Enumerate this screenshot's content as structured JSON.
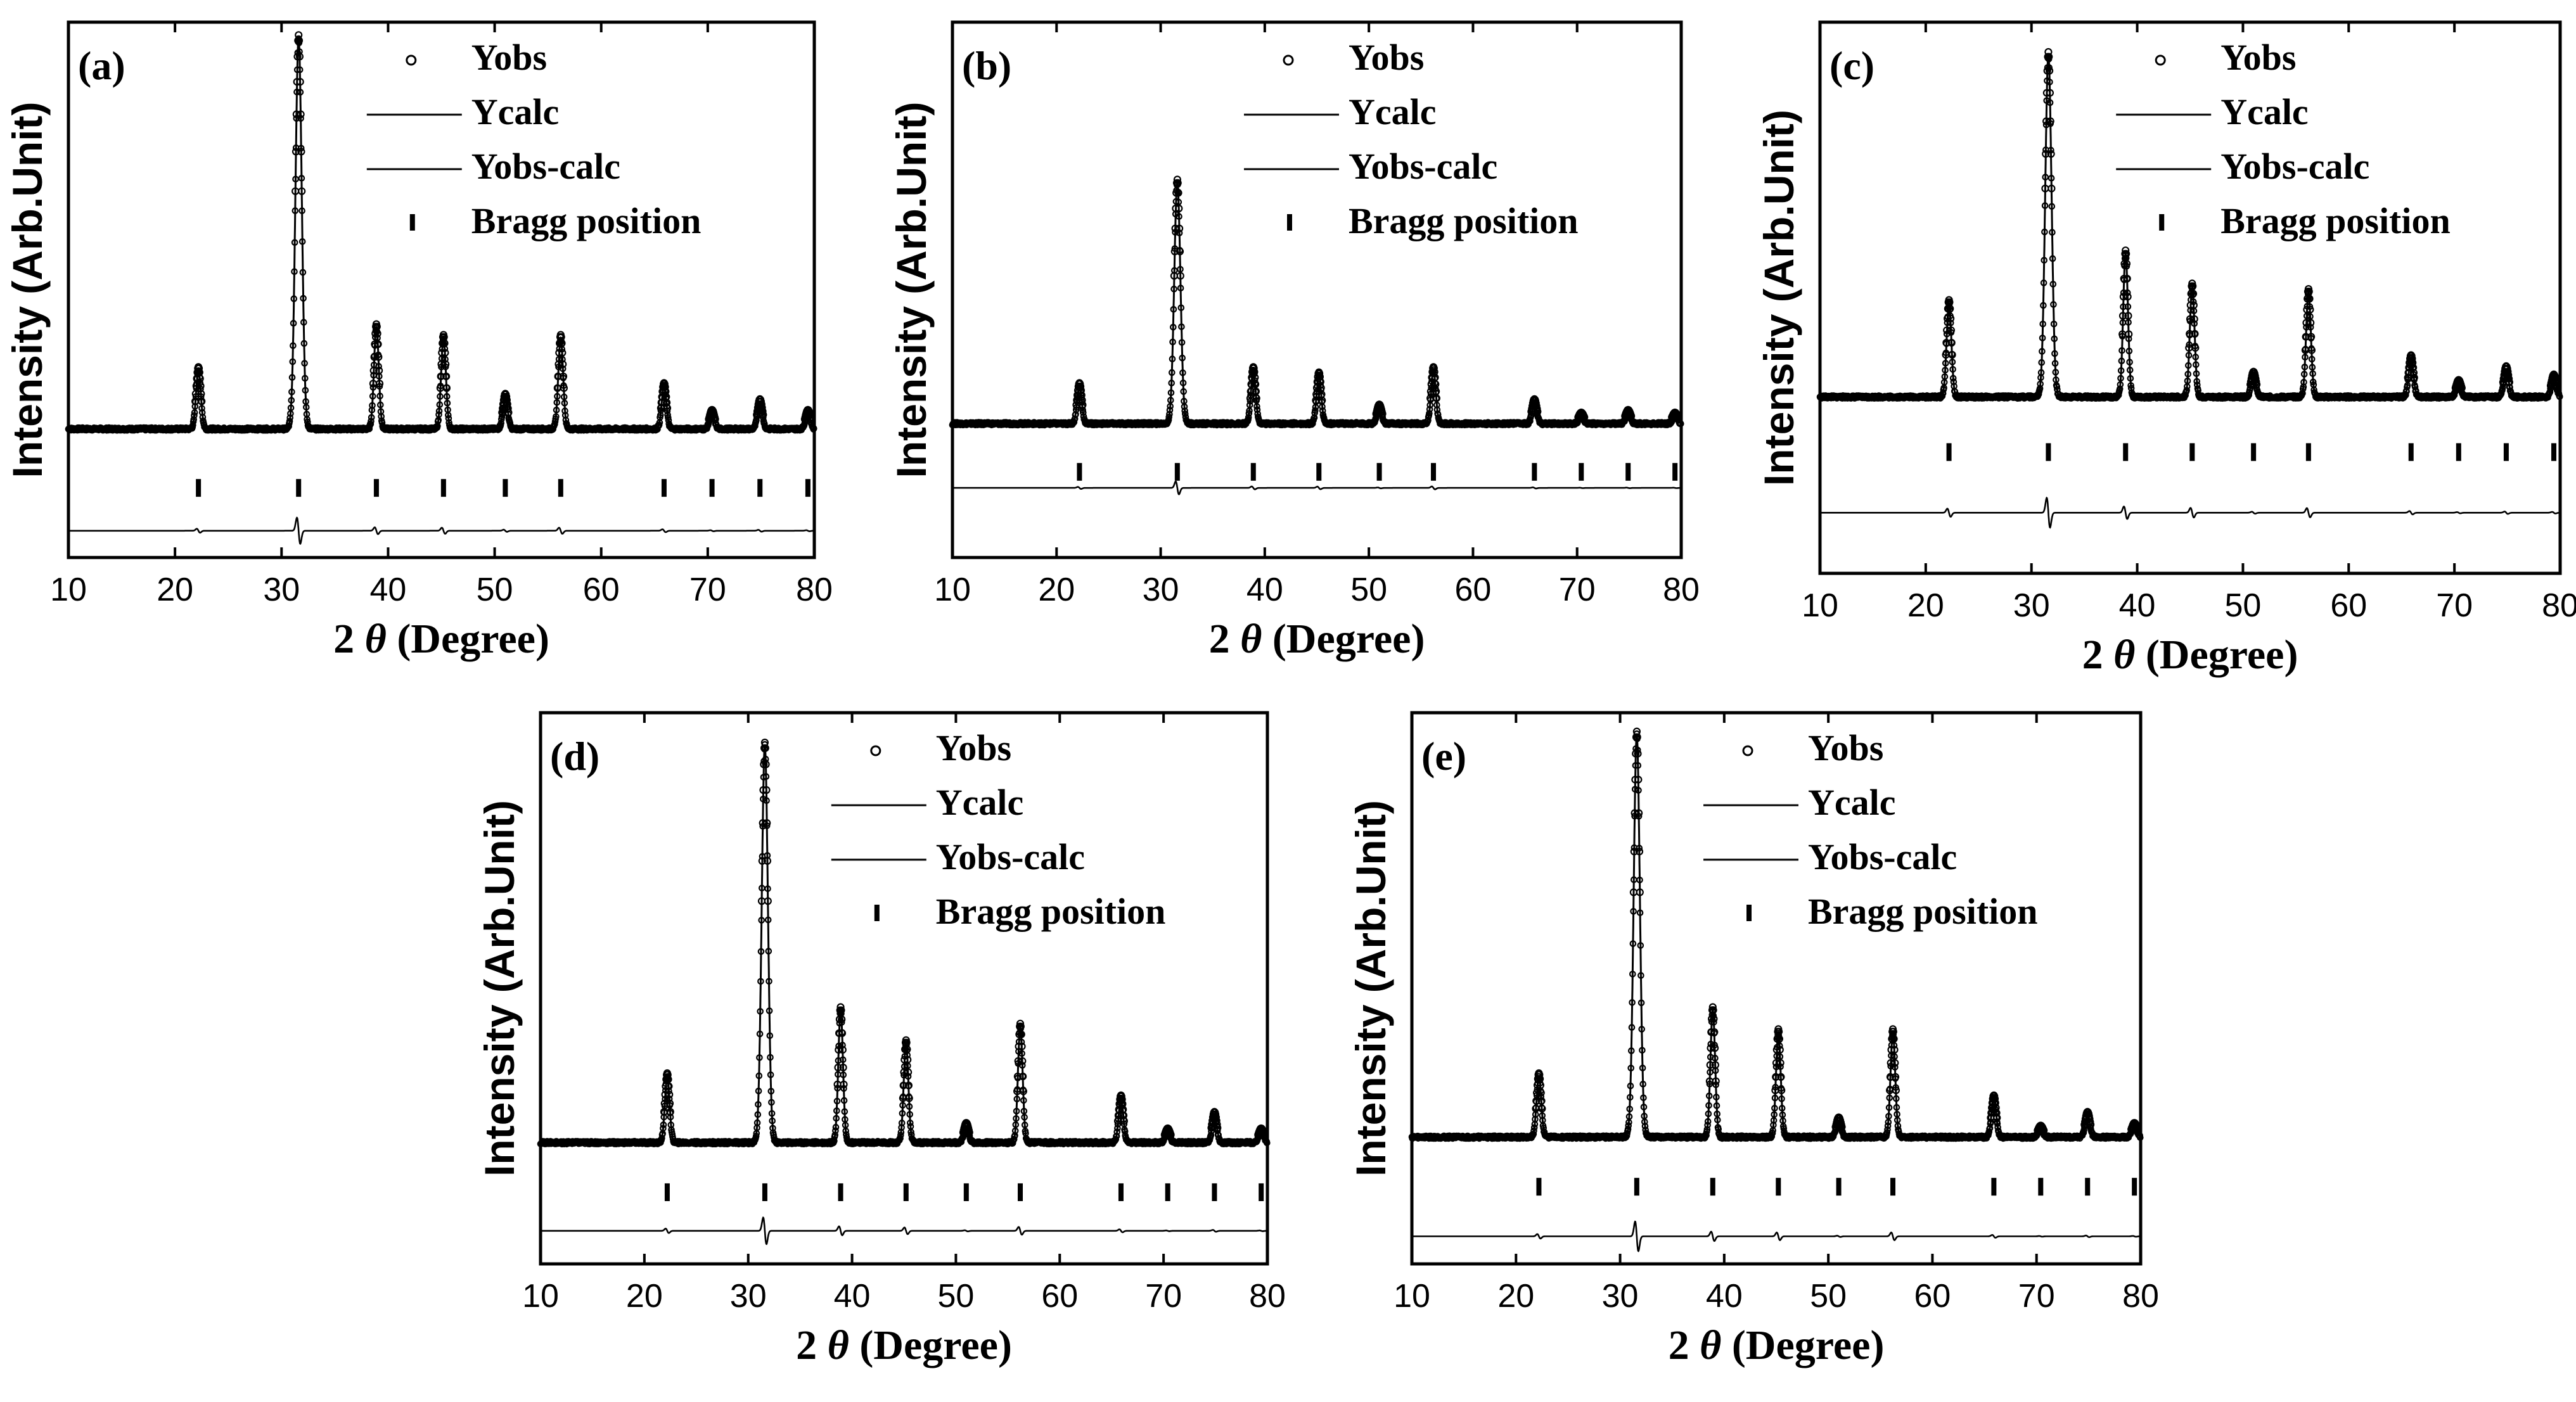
{
  "figure": {
    "xlabel_prefix": "2 ",
    "xlabel_symbol": "θ",
    "xlabel_suffix": " (Degree)",
    "ylabel": "Intensity (Arb.Unit)",
    "legend": {
      "obs": "Yobs",
      "calc": "Ycalc",
      "diff": "Yobs-calc",
      "bragg": "Bragg position"
    }
  },
  "chart_data": [
    {
      "panel": "(a)",
      "type": "line",
      "title": "",
      "xlabel": "2 θ (Degree)",
      "ylabel": "Intensity (Arb.Unit)",
      "xlim": [
        10,
        80
      ],
      "ylim": [
        0,
        100
      ],
      "xticks": [
        10,
        20,
        30,
        40,
        50,
        60,
        70,
        80
      ],
      "baseline": 24,
      "bragg_level": 13,
      "diff_level": 5,
      "diff_scale": 1,
      "peaks": [
        [
          22.2,
          11
        ],
        [
          31.6,
          73
        ],
        [
          38.9,
          19
        ],
        [
          45.2,
          17
        ],
        [
          51.0,
          6
        ],
        [
          56.2,
          17
        ],
        [
          65.9,
          8
        ],
        [
          70.4,
          3
        ],
        [
          74.9,
          5
        ],
        [
          79.4,
          3
        ]
      ],
      "bragg_positions": [
        22.2,
        31.6,
        38.9,
        45.2,
        51.0,
        56.2,
        65.9,
        70.4,
        74.9,
        79.4
      ],
      "series": [
        {
          "name": "Yobs",
          "role": "obs"
        },
        {
          "name": "Ycalc",
          "role": "calc"
        },
        {
          "name": "Yobs-calc",
          "role": "diff"
        },
        {
          "name": "Bragg position",
          "role": "bragg"
        }
      ]
    },
    {
      "panel": "(b)",
      "type": "line",
      "title": "",
      "xlabel": "2 θ (Degree)",
      "ylabel": "Intensity (Arb.Unit)",
      "xlim": [
        10,
        80
      ],
      "ylim": [
        0,
        100
      ],
      "xticks": [
        10,
        20,
        30,
        40,
        50,
        60,
        70,
        80
      ],
      "baseline": 25,
      "bragg_level": 16,
      "diff_level": 13,
      "diff_scale": 0.8,
      "peaks": [
        [
          22.2,
          7
        ],
        [
          31.6,
          45
        ],
        [
          38.9,
          10
        ],
        [
          45.2,
          9
        ],
        [
          51.0,
          3
        ],
        [
          56.2,
          10
        ],
        [
          65.9,
          4
        ],
        [
          70.4,
          1.5
        ],
        [
          74.9,
          2
        ],
        [
          79.4,
          1.5
        ]
      ],
      "bragg_positions": [
        22.2,
        31.6,
        38.9,
        45.2,
        51.0,
        56.2,
        65.9,
        70.4,
        74.9,
        79.4
      ],
      "series": [
        {
          "name": "Yobs",
          "role": "obs"
        },
        {
          "name": "Ycalc",
          "role": "calc"
        },
        {
          "name": "Yobs-calc",
          "role": "diff"
        },
        {
          "name": "Bragg position",
          "role": "bragg"
        }
      ]
    },
    {
      "panel": "(c)",
      "type": "line",
      "title": "",
      "xlabel": "2 θ (Degree)",
      "ylabel": "Intensity (Arb.Unit)",
      "xlim": [
        10,
        80
      ],
      "ylim": [
        0,
        100
      ],
      "xticks": [
        10,
        20,
        30,
        40,
        50,
        60,
        70,
        80
      ],
      "baseline": 32,
      "bragg_level": 22,
      "diff_level": 11,
      "diff_scale": 1.3,
      "peaks": [
        [
          22.2,
          17
        ],
        [
          31.6,
          62
        ],
        [
          38.9,
          26
        ],
        [
          45.2,
          20
        ],
        [
          51.0,
          4
        ],
        [
          56.2,
          19
        ],
        [
          65.9,
          7
        ],
        [
          70.4,
          2.5
        ],
        [
          74.9,
          5
        ],
        [
          79.4,
          3.5
        ]
      ],
      "bragg_positions": [
        22.2,
        31.6,
        38.9,
        45.2,
        51.0,
        56.2,
        65.9,
        70.4,
        74.9,
        79.4
      ],
      "series": [
        {
          "name": "Yobs",
          "role": "obs"
        },
        {
          "name": "Ycalc",
          "role": "calc"
        },
        {
          "name": "Yobs-calc",
          "role": "diff"
        },
        {
          "name": "Bragg position",
          "role": "bragg"
        }
      ]
    },
    {
      "panel": "(d)",
      "type": "line",
      "title": "",
      "xlabel": "2 θ (Degree)",
      "ylabel": "Intensity (Arb.Unit)",
      "xlim": [
        10,
        80
      ],
      "ylim": [
        0,
        100
      ],
      "xticks": [
        10,
        20,
        30,
        40,
        50,
        60,
        70,
        80
      ],
      "baseline": 22,
      "bragg_level": 13,
      "diff_level": 6,
      "diff_scale": 1,
      "peaks": [
        [
          22.2,
          12
        ],
        [
          31.6,
          72
        ],
        [
          38.9,
          24
        ],
        [
          45.2,
          18
        ],
        [
          51.0,
          3
        ],
        [
          56.2,
          21
        ],
        [
          65.9,
          8
        ],
        [
          70.4,
          2
        ],
        [
          74.9,
          5
        ],
        [
          79.4,
          2
        ]
      ],
      "bragg_positions": [
        22.2,
        31.6,
        38.9,
        45.2,
        51.0,
        56.2,
        65.9,
        70.4,
        74.9,
        79.4
      ],
      "series": [
        {
          "name": "Yobs",
          "role": "obs"
        },
        {
          "name": "Ycalc",
          "role": "calc"
        },
        {
          "name": "Yobs-calc",
          "role": "diff"
        },
        {
          "name": "Bragg position",
          "role": "bragg"
        }
      ]
    },
    {
      "panel": "(e)",
      "type": "line",
      "title": "",
      "xlabel": "2 θ (Degree)",
      "ylabel": "Intensity (Arb.Unit)",
      "xlim": [
        10,
        80
      ],
      "ylim": [
        0,
        100
      ],
      "xticks": [
        10,
        20,
        30,
        40,
        50,
        60,
        70,
        80
      ],
      "baseline": 23,
      "bragg_level": 14,
      "diff_level": 5,
      "diff_scale": 1.1,
      "peaks": [
        [
          22.2,
          11
        ],
        [
          31.6,
          73
        ],
        [
          38.9,
          23
        ],
        [
          45.2,
          19
        ],
        [
          51.0,
          3
        ],
        [
          56.2,
          19
        ],
        [
          65.9,
          7
        ],
        [
          70.4,
          1.5
        ],
        [
          74.9,
          4
        ],
        [
          79.4,
          2
        ]
      ],
      "bragg_positions": [
        22.2,
        31.6,
        38.9,
        45.2,
        51.0,
        56.2,
        65.9,
        70.4,
        74.9,
        79.4
      ],
      "series": [
        {
          "name": "Yobs",
          "role": "obs"
        },
        {
          "name": "Ycalc",
          "role": "calc"
        },
        {
          "name": "Yobs-calc",
          "role": "diff"
        },
        {
          "name": "Bragg position",
          "role": "bragg"
        }
      ]
    }
  ]
}
